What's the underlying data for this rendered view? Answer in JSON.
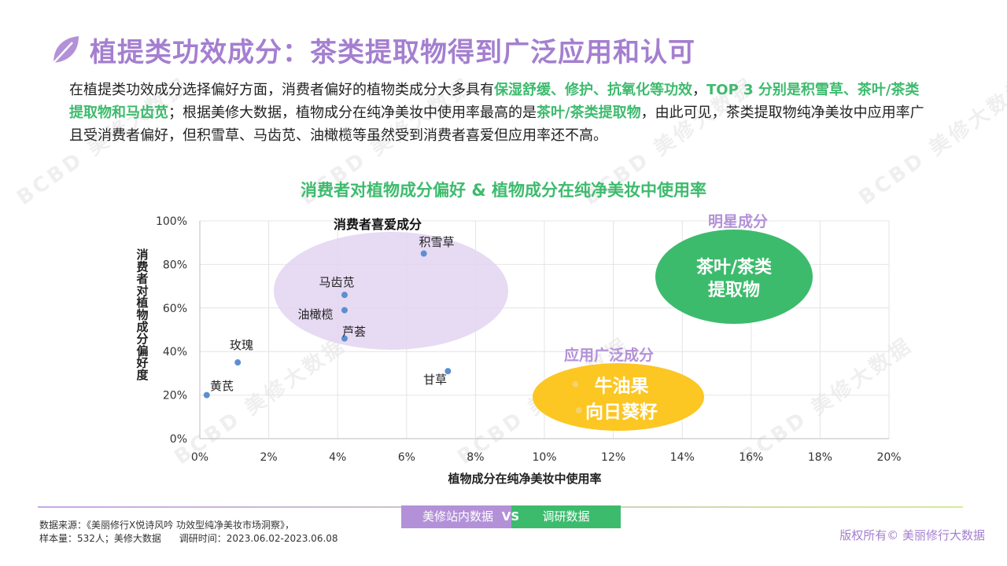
{
  "header": {
    "title": "植提类功效成分：茶类提取物得到广泛应用和认可"
  },
  "intro": {
    "p1": "在植提类功效成分选择偏好方面，消费者偏好的植物类成分大多具有",
    "h1": "保湿舒缓、修护、抗氧化等功效",
    "p2": "，",
    "h2": "TOP 3 分别是积雪草、茶叶/茶类提取物和马齿苋",
    "p3": "；根据美修大数据，植物成分在纯净美妆中使用率最高的是",
    "h3": "茶叶/茶类提取物",
    "p4": "，由此可见，茶类提取物纯净美妆中应用率广且受消费者偏好，但积雪草、马齿苋、油橄榄等虽然受到消费者喜爱但应用率还不高。"
  },
  "watermark": "BCBD 美修大数据",
  "chart_data": {
    "type": "scatter",
    "title": "消费者对植物成分偏好 & 植物成分在纯净美妆中使用率",
    "xlabel": "植物成分在纯净美妆中使用率",
    "ylabel": "消费者对植物成分偏好度",
    "xlim": [
      0,
      20
    ],
    "ylim": [
      0,
      100
    ],
    "xticks": [
      "0%",
      "2%",
      "4%",
      "6%",
      "8%",
      "10%",
      "12%",
      "14%",
      "16%",
      "18%",
      "20%"
    ],
    "yticks": [
      "0%",
      "20%",
      "40%",
      "60%",
      "80%",
      "100%"
    ],
    "grid": true,
    "points": [
      {
        "label": "积雪草",
        "x": 6.5,
        "y": 85
      },
      {
        "label": "马齿苋",
        "x": 4.2,
        "y": 66
      },
      {
        "label": "油橄榄",
        "x": 4.2,
        "y": 59
      },
      {
        "label": "芦荟",
        "x": 4.2,
        "y": 46
      },
      {
        "label": "玫瑰",
        "x": 1.1,
        "y": 35
      },
      {
        "label": "黄芪",
        "x": 0.2,
        "y": 20
      },
      {
        "label": "甘草",
        "x": 7.2,
        "y": 31
      },
      {
        "label": "牛油果",
        "x": 10.9,
        "y": 25
      },
      {
        "label": "向日葵籽",
        "x": 11.0,
        "y": 13
      }
    ],
    "zones": [
      {
        "name": "消费者喜爱成分",
        "color": "#e3d4f1"
      },
      {
        "name": "明星成分",
        "body": "茶叶/茶类\n提取物",
        "color": "#3dbb6d"
      },
      {
        "name": "应用广泛成分",
        "body": "牛油果\n向日葵籽",
        "color": "#fcc623"
      }
    ],
    "point_color": "#5b8fd0"
  },
  "footer": {
    "tag_left": "美修站内数据",
    "vs": "VS",
    "tag_right": "调研数据",
    "source_line1": "数据来源：《美丽修行X悦诗风吟 功效型纯净美妆市场洞察》，",
    "source_line2": "样本量：532人；美修大数据      调研时间：2023.06.02-2023.06.08",
    "copyright": "版权所有© 美丽修行大数据"
  },
  "colors": {
    "title_purple": "#a47fd0",
    "highlight_green": "#3dbb6d",
    "zone_yellow": "#fcc623"
  }
}
